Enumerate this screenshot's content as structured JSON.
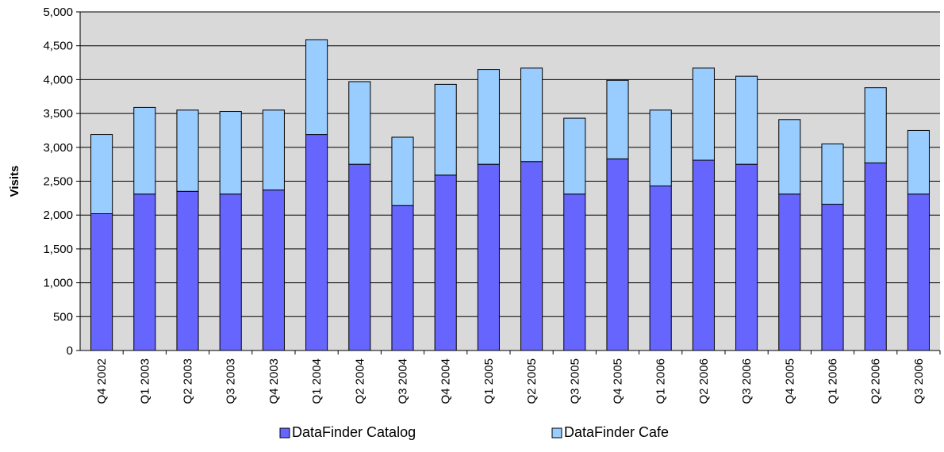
{
  "chart_data": {
    "type": "bar",
    "stacked": true,
    "title": "",
    "xlabel": "",
    "ylabel": "Visits",
    "ylim": [
      0,
      5000
    ],
    "ytick_step": 500,
    "yticks": [
      "0",
      "500",
      "1,000",
      "1,500",
      "2,000",
      "2,500",
      "3,000",
      "3,500",
      "4,000",
      "4,500",
      "5,000"
    ],
    "grid": true,
    "legend_position": "bottom",
    "categories": [
      "Q4 2002",
      "Q1 2003",
      "Q2 2003",
      "Q3 2003",
      "Q4 2003",
      "Q1 2004",
      "Q2 2004",
      "Q3 2004",
      "Q4 2004",
      "Q1 2005",
      "Q2 2005",
      "Q3 2005",
      "Q4 2005",
      "Q1 2006",
      "Q2 2006",
      "Q3 2006",
      "Q4 2005",
      "Q1 2006",
      "Q2 2006",
      "Q3 2006"
    ],
    "series": [
      {
        "name": "DataFinder Catalog",
        "color": "#6666ff",
        "values": [
          2020,
          2310,
          2350,
          2310,
          2370,
          3190,
          2750,
          2140,
          2590,
          2750,
          2790,
          2310,
          2830,
          2430,
          2810,
          2750,
          2310,
          2160,
          2770,
          2310
        ]
      },
      {
        "name": "DataFinder Cafe",
        "color": "#99ccff",
        "values": [
          1170,
          1280,
          1200,
          1220,
          1180,
          1400,
          1220,
          1010,
          1340,
          1400,
          1380,
          1120,
          1160,
          1120,
          1360,
          1300,
          1100,
          890,
          1110,
          940
        ]
      }
    ],
    "plot_background": "#d9d9d9"
  }
}
